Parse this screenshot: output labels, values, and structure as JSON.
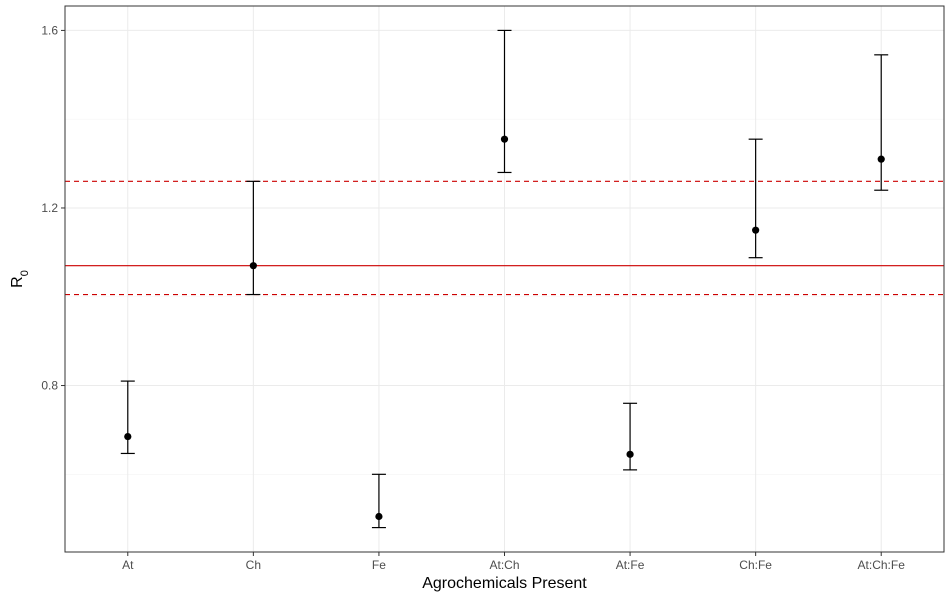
{
  "chart_data": {
    "type": "scatter",
    "subtype": "point-with-errorbars",
    "title": "",
    "xlabel": "Agrochemicals Present",
    "ylabel_main": "R",
    "ylabel_sub": "0",
    "categories": [
      "At",
      "Ch",
      "Fe",
      "At:Ch",
      "At:Fe",
      "Ch:Fe",
      "At:Ch:Fe"
    ],
    "series": [
      {
        "values": [
          0.685,
          1.07,
          0.505,
          1.355,
          0.645,
          1.15,
          1.31
        ],
        "lower": [
          0.647,
          1.005,
          0.48,
          1.28,
          0.61,
          1.088,
          1.24
        ],
        "upper": [
          0.81,
          1.26,
          0.6,
          1.6,
          0.76,
          1.355,
          1.545
        ],
        "color": "#000000"
      }
    ],
    "reference_lines": [
      {
        "value": 1.07,
        "style": "solid",
        "color": "#cc0000"
      },
      {
        "value": 1.005,
        "style": "dashed",
        "color": "#cc0000"
      },
      {
        "value": 1.26,
        "style": "dashed",
        "color": "#cc0000"
      }
    ],
    "yticks": [
      0.8,
      1.2,
      1.6
    ],
    "ylim": [
      0.425,
      1.655
    ],
    "grid": true,
    "legend": "none"
  }
}
